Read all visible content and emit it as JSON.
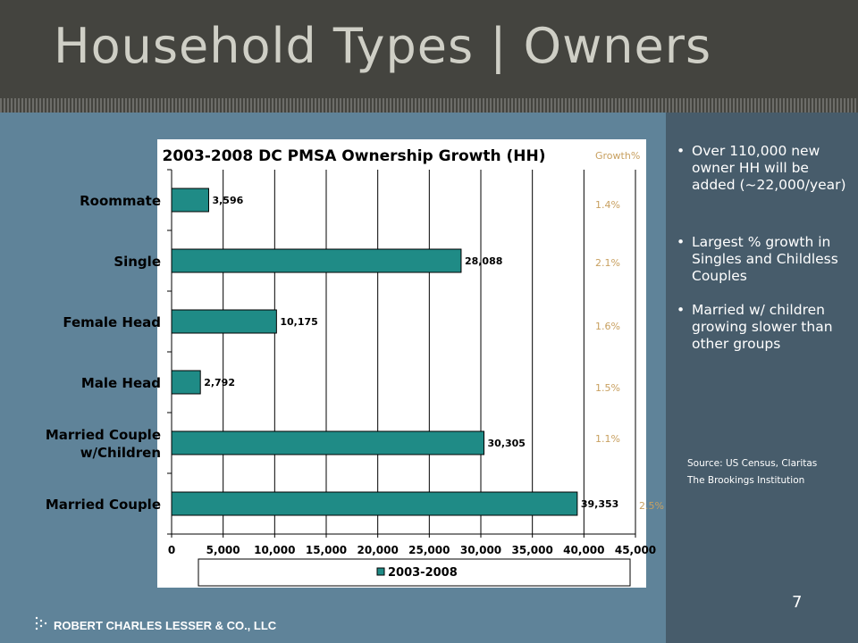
{
  "slide": {
    "title": "Household Types | Owners",
    "page_number": "7",
    "company": "ROBERT CHARLES LESSER & CO., LLC",
    "colors": {
      "title_bar": "#44443f",
      "background": "#5f8399",
      "right_panel": "#475c6b",
      "bar": "#1f8b86"
    }
  },
  "bullets": [
    "Over 110,000 new owner HH will be added (~22,000/year)",
    "Largest % growth in Singles and Childless Couples",
    "Married w/ children growing slower than other groups"
  ],
  "sources": [
    "Source: US Census, Claritas",
    "The Brookings Institution"
  ],
  "chart_data": {
    "type": "bar",
    "orientation": "horizontal",
    "title": "2003-2008 DC PMSA Ownership Growth (HH)",
    "categories": [
      "Roommate",
      "Single",
      "Female Head",
      "Male Head",
      "Married Couple w/Children",
      "Married Couple"
    ],
    "series": [
      {
        "name": "2003-2008",
        "values": [
          3596,
          28088,
          10175,
          2792,
          30305,
          39353
        ],
        "labels": [
          "3,596",
          "28,088",
          "10,175",
          "2,792",
          "30,305",
          "39,353"
        ]
      }
    ],
    "growth_header": "Growth%",
    "growth": [
      "1.4%",
      "2.1%",
      "1.6%",
      "1.5%",
      "1.1%",
      "2.5%"
    ],
    "xlim": [
      0,
      45000
    ],
    "xticks": [
      "0",
      "5,000",
      "10,000",
      "15,000",
      "20,000",
      "25,000",
      "30,000",
      "35,000",
      "40,000",
      "45,000"
    ],
    "grid": true,
    "legend_position": "bottom"
  }
}
